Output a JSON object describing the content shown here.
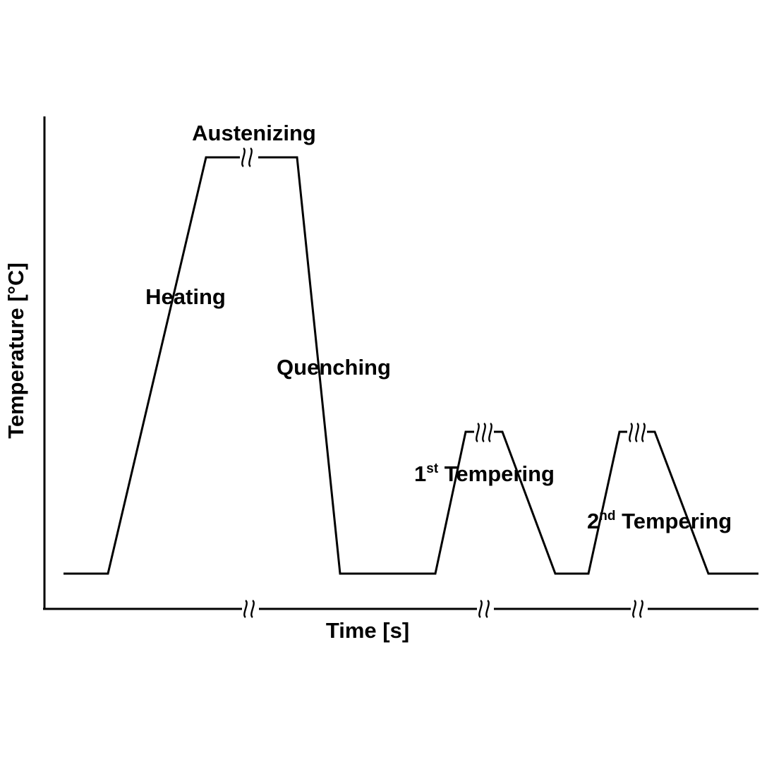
{
  "diagram": {
    "axes": {
      "x_label": "Time [s]",
      "y_label": "Temperature [°C]"
    },
    "stages": {
      "heating": "Heating",
      "austenizing": "Austenizing",
      "quenching": "Quenching",
      "tempering_1": {
        "ordinal": "1",
        "suffix": "st",
        "label": " Tempering"
      },
      "tempering_2": {
        "ordinal": "2",
        "suffix": "nd",
        "label": " Tempering"
      }
    },
    "line_color": "#000000",
    "background_color": "#ffffff"
  }
}
